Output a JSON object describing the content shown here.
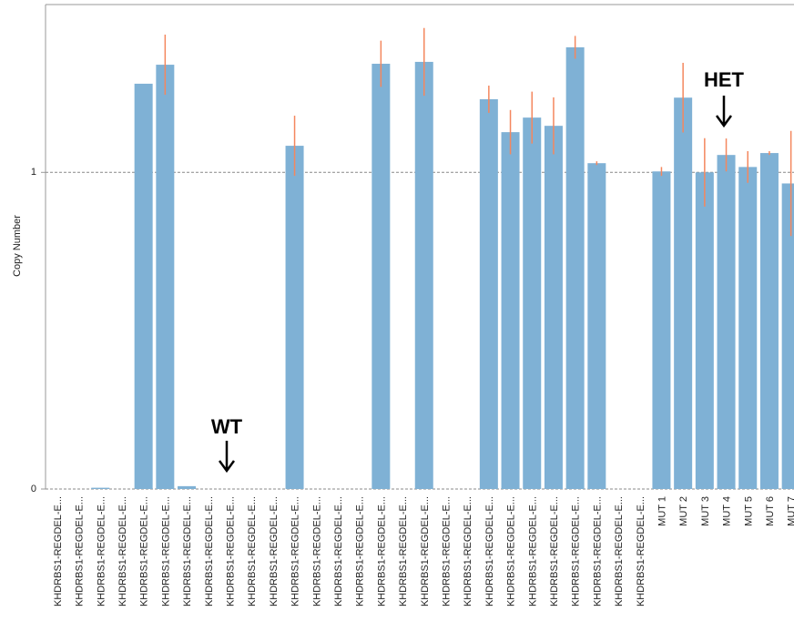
{
  "chart_data": {
    "type": "bar",
    "ylabel": "Copy Number",
    "categories": [
      "KHDRBS1-REGDEL-E...",
      "KHDRBS1-REGDEL-E...",
      "KHDRBS1-REGDEL-E...",
      "KHDRBS1-REGDEL-E...",
      "KHDRBS1-REGDEL-E...",
      "KHDRBS1-REGDEL-E...",
      "KHDRBS1-REGDEL-E...",
      "KHDRBS1-REGDEL-E...",
      "KHDRBS1-REGDEL-E...",
      "KHDRBS1-REGDEL-E...",
      "KHDRBS1-REGDEL-E...",
      "KHDRBS1-REGDEL-E...",
      "KHDRBS1-REGDEL-E...",
      "KHDRBS1-REGDEL-E...",
      "KHDRBS1-REGDEL-E...",
      "KHDRBS1-REGDEL-E...",
      "KHDRBS1-REGDEL-E...",
      "KHDRBS1-REGDEL-E...",
      "KHDRBS1-REGDEL-E...",
      "KHDRBS1-REGDEL-E...",
      "KHDRBS1-REGDEL-E...",
      "KHDRBS1-REGDEL-E...",
      "KHDRBS1-REGDEL-E...",
      "KHDRBS1-REGDEL-E...",
      "KHDRBS1-REGDEL-E...",
      "KHDRBS1-REGDEL-E...",
      "KHDRBS1-REGDEL-E...",
      "KHDRBS1-REGDEL-E...",
      "MUT 1",
      "MUT 2",
      "MUT 3",
      "MUT 4",
      "MUT 5",
      "MUT 6",
      "MUT 7"
    ],
    "values": [
      0,
      0,
      0.004,
      0,
      1.28,
      1.34,
      0.009,
      0,
      0,
      0,
      0,
      1.084,
      0,
      0,
      0,
      1.343,
      0,
      1.349,
      0,
      0,
      1.231,
      1.127,
      1.173,
      1.147,
      1.395,
      1.029,
      0,
      0,
      1.003,
      1.236,
      1.0,
      1.055,
      1.017,
      1.061,
      0.965
    ],
    "errors": [
      null,
      null,
      null,
      null,
      null,
      0.095,
      null,
      null,
      null,
      null,
      null,
      0.095,
      null,
      null,
      null,
      0.073,
      null,
      0.107,
      null,
      null,
      0.043,
      0.07,
      0.082,
      0.09,
      0.036,
      0.006,
      null,
      null,
      0.014,
      0.11,
      0.108,
      0.052,
      0.05,
      0.006,
      0.166
    ],
    "color": "#7fb1d5",
    "error_color": "#f4875e",
    "ylim": [
      0,
      1.53
    ],
    "yticks": [
      0,
      1
    ],
    "grid": true,
    "annotations": [
      "WT",
      "HET"
    ]
  }
}
